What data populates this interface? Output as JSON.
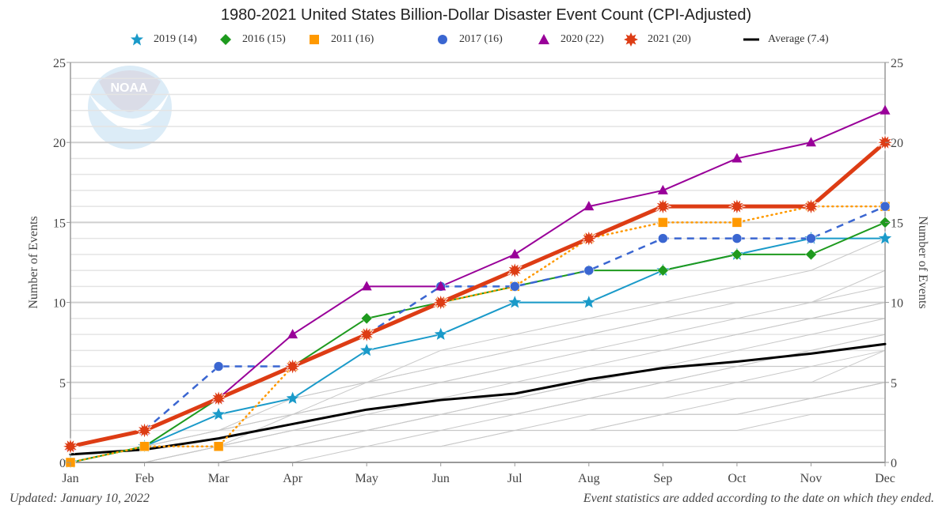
{
  "chart_data": {
    "type": "line",
    "title": "1980-2021 United States Billion-Dollar Disaster Event Count (CPI-Adjusted)",
    "xlabel": "",
    "ylabel": "Number of Events",
    "ylabel_right": "Number of Events",
    "x": [
      "Jan",
      "Feb",
      "Mar",
      "Apr",
      "May",
      "Jun",
      "Jul",
      "Aug",
      "Sep",
      "Oct",
      "Nov",
      "Dec"
    ],
    "ylim": [
      0,
      25
    ],
    "yticks": [
      0,
      5,
      10,
      15,
      20,
      25
    ],
    "grid": true,
    "legend_position": "top-center",
    "series": [
      {
        "name": "2019 (14)",
        "year": "2019",
        "color": "#1a9ac9",
        "marker": "star",
        "dash": "solid",
        "values": [
          0,
          1,
          3,
          4,
          7,
          8,
          10,
          10,
          12,
          13,
          14,
          14
        ]
      },
      {
        "name": "2016 (15)",
        "year": "2016",
        "color": "#1e9a1e",
        "marker": "diamond",
        "dash": "solid",
        "values": [
          0,
          1,
          4,
          6,
          9,
          10,
          11,
          12,
          12,
          13,
          13,
          15
        ]
      },
      {
        "name": "2011 (16)",
        "year": "2011",
        "color": "#ff9900",
        "marker": "square",
        "dash": "dotted",
        "values": [
          0,
          1,
          1,
          6,
          8,
          10,
          11,
          14,
          15,
          15,
          16,
          16
        ]
      },
      {
        "name": "2017 (16)",
        "year": "2017",
        "color": "#3a66d1",
        "marker": "circle",
        "dash": "dashed",
        "values": [
          1,
          2,
          6,
          6,
          8,
          11,
          11,
          12,
          14,
          14,
          14,
          16
        ]
      },
      {
        "name": "2020 (22)",
        "year": "2020",
        "color": "#990099",
        "marker": "triangle",
        "dash": "solid",
        "values": [
          1,
          2,
          4,
          8,
          11,
          11,
          13,
          16,
          17,
          19,
          20,
          22
        ]
      },
      {
        "name": "2021 (20)",
        "year": "2021",
        "color": "#dd3c14",
        "marker": "burst",
        "dash": "thick",
        "values": [
          1,
          2,
          4,
          6,
          8,
          10,
          12,
          14,
          16,
          16,
          16,
          20
        ]
      },
      {
        "name": "Average (7.4)",
        "year": "Average",
        "color": "#000000",
        "marker": "none",
        "dash": "solid",
        "values": [
          0.5,
          0.8,
          1.5,
          2.4,
          3.3,
          3.9,
          4.3,
          5.2,
          5.9,
          6.3,
          6.8,
          7.4
        ]
      }
    ],
    "background_series_color": "#c8c8c8",
    "background_series": [
      [
        0,
        0,
        1,
        1,
        2,
        2,
        3,
        4,
        4,
        5,
        5,
        7
      ],
      [
        0,
        0,
        0,
        1,
        1,
        2,
        2,
        2,
        3,
        3,
        4,
        5
      ],
      [
        0,
        1,
        1,
        2,
        2,
        3,
        3,
        4,
        5,
        5,
        6,
        6
      ],
      [
        0,
        0,
        1,
        3,
        4,
        4,
        5,
        6,
        7,
        8,
        9,
        9
      ],
      [
        0,
        1,
        2,
        3,
        4,
        5,
        6,
        7,
        8,
        9,
        9,
        10
      ],
      [
        0,
        0,
        0,
        0,
        1,
        1,
        2,
        2,
        2,
        2,
        3,
        3
      ],
      [
        0,
        1,
        2,
        4,
        5,
        6,
        7,
        8,
        9,
        10,
        10,
        11
      ],
      [
        0,
        0,
        1,
        2,
        3,
        3,
        4,
        5,
        5,
        6,
        7,
        8
      ],
      [
        0,
        1,
        2,
        3,
        5,
        7,
        8,
        9,
        10,
        11,
        12,
        14
      ],
      [
        0,
        0,
        0,
        1,
        2,
        3,
        3,
        4,
        5,
        6,
        6,
        7
      ],
      [
        0,
        0,
        1,
        2,
        2,
        3,
        4,
        5,
        6,
        7,
        8,
        9
      ],
      [
        0,
        1,
        2,
        3,
        4,
        5,
        6,
        7,
        7,
        8,
        9,
        10
      ],
      [
        0,
        0,
        0,
        1,
        1,
        1,
        2,
        2,
        3,
        4,
        4,
        5
      ],
      [
        0,
        1,
        3,
        4,
        5,
        6,
        7,
        8,
        9,
        9,
        10,
        12
      ],
      [
        0,
        0,
        1,
        1,
        2,
        2,
        2,
        3,
        3,
        3,
        4,
        5
      ],
      [
        0,
        1,
        1,
        2,
        3,
        4,
        4,
        5,
        6,
        6,
        7,
        8
      ]
    ]
  },
  "watermark": {
    "text": "NOAA",
    "icon": "noaa-logo-icon"
  },
  "footer": {
    "updated": "Updated: January 10, 2022",
    "note": "Event statistics are added according to the date on which they ended."
  }
}
